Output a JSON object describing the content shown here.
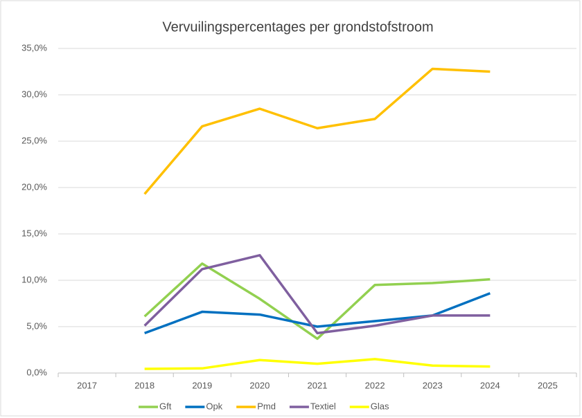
{
  "chart_data": {
    "type": "line",
    "title": "Vervuilingspercentages per grondstofstroom",
    "categories": [
      "2017",
      "2018",
      "2019",
      "2020",
      "2021",
      "2022",
      "2023",
      "2024",
      "2025"
    ],
    "series": [
      {
        "name": "Gft",
        "color": "#92d050",
        "values": [
          null,
          6.1,
          11.8,
          8.0,
          3.7,
          9.5,
          9.7,
          10.1,
          null
        ]
      },
      {
        "name": "Opk",
        "color": "#0070c0",
        "values": [
          null,
          4.3,
          6.6,
          6.3,
          5.0,
          5.6,
          6.2,
          8.6,
          null
        ]
      },
      {
        "name": "Pmd",
        "color": "#ffc000",
        "values": [
          null,
          19.3,
          26.6,
          28.5,
          26.4,
          27.4,
          32.8,
          32.5,
          null
        ]
      },
      {
        "name": "Textiel",
        "color": "#7f5f9f",
        "values": [
          null,
          5.1,
          11.2,
          12.7,
          4.3,
          5.1,
          6.2,
          6.2,
          null
        ]
      },
      {
        "name": "Glas",
        "color": "#ffff00",
        "values": [
          null,
          0.45,
          0.5,
          1.4,
          1.0,
          1.5,
          0.8,
          0.7,
          null
        ]
      }
    ],
    "ylim": [
      0,
      35
    ],
    "yticks": [
      {
        "value": 0,
        "label": "0,0%"
      },
      {
        "value": 5,
        "label": "5,0%"
      },
      {
        "value": 10,
        "label": "10,0%"
      },
      {
        "value": 15,
        "label": "15,0%"
      },
      {
        "value": 20,
        "label": "20,0%"
      },
      {
        "value": 25,
        "label": "25,0%"
      },
      {
        "value": 30,
        "label": "30,0%"
      },
      {
        "value": 35,
        "label": "35,0%"
      }
    ],
    "grid": true,
    "legend": "bottom"
  }
}
